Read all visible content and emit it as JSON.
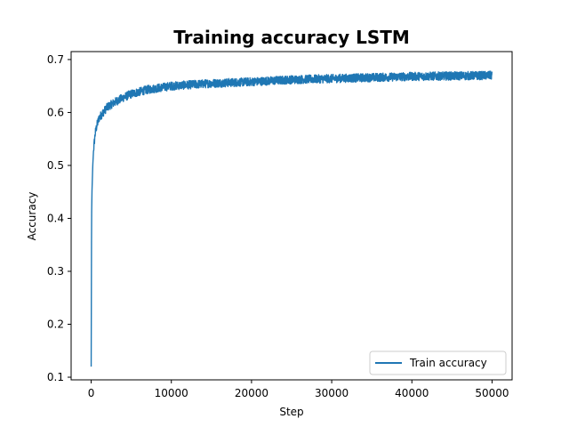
{
  "chart_data": {
    "type": "line",
    "title": "Training accuracy LSTM",
    "xlabel": "Step",
    "ylabel": "Accuracy",
    "xlim": [
      -2500,
      52500
    ],
    "ylim": [
      0.095,
      0.715
    ],
    "xticks": [
      0,
      10000,
      20000,
      30000,
      40000,
      50000
    ],
    "yticks": [
      0.1,
      0.2,
      0.3,
      0.4,
      0.5,
      0.6,
      0.7
    ],
    "xtick_labels": [
      "0",
      "10000",
      "20000",
      "30000",
      "40000",
      "50000"
    ],
    "ytick_labels": [
      "0.1",
      "0.2",
      "0.3",
      "0.4",
      "0.5",
      "0.6",
      "0.7"
    ],
    "legend_position": "lower-right",
    "grid": false,
    "series": [
      {
        "name": "Train accuracy",
        "color": "#1f77b4",
        "x": [
          0,
          50,
          100,
          200,
          300,
          500,
          700,
          1000,
          1500,
          2000,
          3000,
          4000,
          5000,
          7000,
          10000,
          15000,
          20000,
          25000,
          30000,
          35000,
          40000,
          45000,
          50000
        ],
        "y": [
          0.12,
          0.4,
          0.45,
          0.5,
          0.53,
          0.56,
          0.575,
          0.59,
          0.6,
          0.61,
          0.62,
          0.628,
          0.635,
          0.643,
          0.65,
          0.655,
          0.658,
          0.662,
          0.664,
          0.666,
          0.668,
          0.669,
          0.67
        ],
        "noise_band": 0.008
      }
    ]
  }
}
